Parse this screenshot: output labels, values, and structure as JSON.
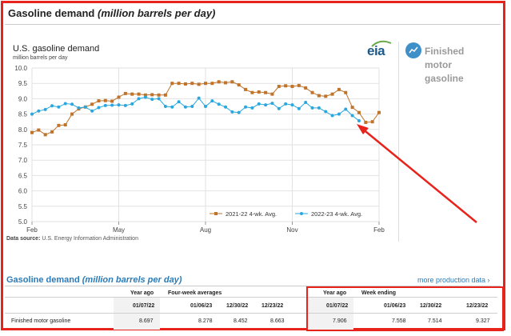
{
  "header": {
    "title": "Gasoline demand",
    "title_unit": "(million barrels per day)"
  },
  "sidebar": {
    "logo_text": "eia",
    "product_label": "Finished motor gasoline"
  },
  "chart_data": {
    "type": "line",
    "title": "U.S. gasoline demand",
    "ylabel": "million barrels per day",
    "ylim": [
      5.0,
      10.0
    ],
    "yticks": [
      "10.0",
      "9.5",
      "9.0",
      "8.5",
      "8.0",
      "7.5",
      "7.0",
      "6.5",
      "6.0",
      "5.5",
      "5.0"
    ],
    "xlim": [
      0,
      52
    ],
    "xticks": [
      {
        "label": "Feb",
        "week": 0
      },
      {
        "label": "May",
        "week": 13
      },
      {
        "label": "Aug",
        "week": 26
      },
      {
        "label": "Nov",
        "week": 39
      },
      {
        "label": "Feb",
        "week": 52
      }
    ],
    "series": [
      {
        "name": "2021-22  4-wk. Avg.",
        "color": "#c0732a",
        "marker": "square",
        "values": [
          7.9,
          7.98,
          7.83,
          7.92,
          8.13,
          8.15,
          8.5,
          8.67,
          8.73,
          8.82,
          8.93,
          8.94,
          8.92,
          9.05,
          9.17,
          9.15,
          9.15,
          9.12,
          9.13,
          9.12,
          9.12,
          9.5,
          9.5,
          9.48,
          9.5,
          9.47,
          9.5,
          9.5,
          9.55,
          9.52,
          9.55,
          9.45,
          9.3,
          9.2,
          9.22,
          9.2,
          9.15,
          9.4,
          9.42,
          9.4,
          9.43,
          9.35,
          9.2,
          9.1,
          9.08,
          9.15,
          9.3,
          9.2,
          8.72,
          8.55,
          8.23,
          8.25,
          8.55
        ]
      },
      {
        "name": "2022-23  4-wk. Avg.",
        "color": "#2aa7de",
        "marker": "circle",
        "values": [
          8.5,
          8.6,
          8.65,
          8.77,
          8.73,
          8.84,
          8.82,
          8.7,
          8.73,
          8.6,
          8.71,
          8.78,
          8.79,
          8.8,
          8.78,
          8.83,
          9.0,
          9.05,
          8.98,
          9.0,
          8.75,
          8.73,
          8.9,
          8.73,
          8.75,
          9.02,
          8.75,
          8.93,
          8.82,
          8.73,
          8.57,
          8.55,
          8.73,
          8.7,
          8.83,
          8.8,
          8.85,
          8.68,
          8.83,
          8.8,
          8.68,
          8.88,
          8.7,
          8.7,
          8.58,
          8.45,
          8.5,
          8.66,
          8.45,
          8.28
        ]
      }
    ]
  },
  "source": {
    "label": "Data source:",
    "text": "U.S. Energy Information Administration"
  },
  "table": {
    "title": "Gasoline demand",
    "title_unit": "(million barrels per day)",
    "more_link": "more production data ›",
    "groups": {
      "left_year_ago": "Year ago",
      "four_week": "Four-week averages",
      "right_year_ago": "Year ago",
      "week_ending": "Week ending"
    },
    "dates": [
      "01/07/22",
      "01/06/23",
      "12/30/22",
      "12/23/22",
      "01/07/22",
      "01/06/23",
      "12/30/22",
      "12/23/22"
    ],
    "row": {
      "label": "Finished motor gasoline",
      "values": [
        "8.697",
        "8.278",
        "8.452",
        "8.663",
        "7.906",
        "7.558",
        "7.514",
        "9.327"
      ]
    }
  }
}
